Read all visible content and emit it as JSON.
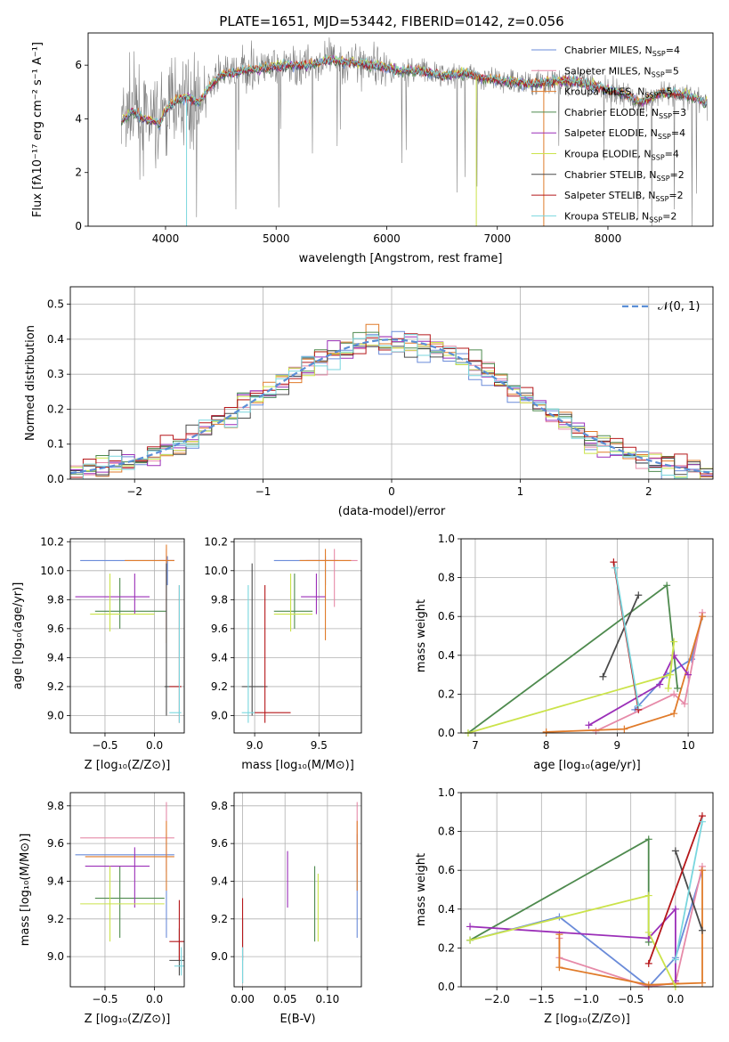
{
  "title": "PLATE=1651, MJD=53442, FIBERID=0142, z=0.056",
  "colors": {
    "chabrier_miles": "#6a8bd9",
    "salpeter_miles": "#e68aa8",
    "kroupa_miles": "#e07b2a",
    "chabrier_elodie": "#4e8a4e",
    "salpeter_elodie": "#9b2fb8",
    "kroupa_elodie": "#cbe34a",
    "chabrier_stelib": "#4a4a4a",
    "salpeter_stelib": "#b5171a",
    "kroupa_stelib": "#79d6de",
    "data": "#808080",
    "normal": "#5b8ed6"
  },
  "chart_data": [
    {
      "id": "spectrum",
      "type": "line",
      "xlabel": "wavelength [Angstrom, rest frame]",
      "ylabel": "Flux [fλ10⁻¹⁷ erg cm⁻² s⁻¹ A⁻¹]",
      "xlim": [
        3300,
        8950
      ],
      "ylim": [
        0,
        7.2
      ],
      "xticks": [
        "4000",
        "5000",
        "6000",
        "7000",
        "8000"
      ],
      "yticks": [
        "0",
        "2",
        "4",
        "6"
      ],
      "legend_position": "right",
      "legend": [
        {
          "label": "Chabrier MILES, N",
          "sub": "SSP",
          "suffix": "=4",
          "color": "chabrier_miles"
        },
        {
          "label": "Salpeter MILES, N",
          "sub": "SSP",
          "suffix": "=5",
          "color": "salpeter_miles"
        },
        {
          "label": "Kroupa MILES, N",
          "sub": "SSP",
          "suffix": "=5",
          "color": "kroupa_miles"
        },
        {
          "label": "Chabrier ELODIE, N",
          "sub": "SSP",
          "suffix": "=3",
          "color": "chabrier_elodie"
        },
        {
          "label": "Salpeter ELODIE, N",
          "sub": "SSP",
          "suffix": "=4",
          "color": "salpeter_elodie"
        },
        {
          "label": "Kroupa ELODIE, N",
          "sub": "SSP",
          "suffix": "=4",
          "color": "kroupa_elodie"
        },
        {
          "label": "Chabrier STELIB, N",
          "sub": "SSP",
          "suffix": "=2",
          "color": "chabrier_stelib"
        },
        {
          "label": "Salpeter STELIB, N",
          "sub": "SSP",
          "suffix": "=2",
          "color": "salpeter_stelib"
        },
        {
          "label": "Kroupa STELIB, N",
          "sub": "SSP",
          "suffix": "=2",
          "color": "kroupa_stelib"
        }
      ],
      "continuum": [
        [
          3600,
          3.9
        ],
        [
          3700,
          4.3
        ],
        [
          3800,
          4.0
        ],
        [
          3900,
          3.9
        ],
        [
          3950,
          3.8
        ],
        [
          4000,
          4.3
        ],
        [
          4100,
          4.7
        ],
        [
          4200,
          4.8
        ],
        [
          4300,
          4.6
        ],
        [
          4400,
          5.2
        ],
        [
          4500,
          5.6
        ],
        [
          4700,
          5.8
        ],
        [
          4900,
          5.9
        ],
        [
          5100,
          6.0
        ],
        [
          5300,
          6.0
        ],
        [
          5500,
          6.2
        ],
        [
          5700,
          6.1
        ],
        [
          5900,
          6.0
        ],
        [
          6100,
          5.8
        ],
        [
          6300,
          5.8
        ],
        [
          6500,
          5.6
        ],
        [
          6700,
          5.7
        ],
        [
          6900,
          5.5
        ],
        [
          7100,
          5.4
        ],
        [
          7300,
          5.3
        ],
        [
          7500,
          5.4
        ],
        [
          7700,
          5.4
        ],
        [
          7900,
          5.2
        ],
        [
          8100,
          5.0
        ],
        [
          8300,
          4.6
        ],
        [
          8500,
          5.0
        ],
        [
          8700,
          4.9
        ],
        [
          8900,
          4.6
        ]
      ]
    },
    {
      "id": "residuals",
      "type": "histogram",
      "xlabel": "(data-model)/error",
      "ylabel": "Normed distribution",
      "xlim": [
        -2.5,
        2.5
      ],
      "ylim": [
        0,
        0.55
      ],
      "xticks": [
        "−2",
        "−1",
        "0",
        "1",
        "2"
      ],
      "yticks": [
        "0.0",
        "0.1",
        "0.2",
        "0.3",
        "0.4",
        "0.5"
      ],
      "grid": true,
      "bin_width": 0.1,
      "legend_position": "top-right",
      "legend_label": "𝒩(0, 1)"
    },
    {
      "id": "age_vs_Z",
      "type": "errorbar",
      "xlabel": "Z [log₁₀(Z/Z⊙)]",
      "ylabel": "age  [log₁₀(age/yr)]",
      "xlim": [
        -0.85,
        0.3
      ],
      "ylim": [
        8.88,
        10.22
      ],
      "xticks": [
        "−0.5",
        "0.0"
      ],
      "yticks": [
        "9.0",
        "9.2",
        "9.4",
        "9.6",
        "9.8",
        "10.0",
        "10.2"
      ],
      "grid": true,
      "points": [
        {
          "c": "chabrier_miles",
          "x": 0.13,
          "y": 10.07,
          "xl": -0.75,
          "xh": 0.2,
          "yl": 9.9,
          "yh": 10.1
        },
        {
          "c": "salpeter_miles",
          "x": 0.12,
          "y": 10.07,
          "xl": 0.05,
          "xh": 0.2,
          "yl": 9.6,
          "yh": 10.15
        },
        {
          "c": "kroupa_miles",
          "x": 0.12,
          "y": 10.07,
          "xl": -0.3,
          "xh": 0.2,
          "yl": 9.5,
          "yh": 10.18
        },
        {
          "c": "chabrier_elodie",
          "x": -0.35,
          "y": 9.72,
          "xl": -0.6,
          "xh": 0.12,
          "yl": 9.6,
          "yh": 9.95
        },
        {
          "c": "salpeter_elodie",
          "x": -0.2,
          "y": 9.82,
          "xl": -0.8,
          "xh": -0.05,
          "yl": 9.7,
          "yh": 9.98
        },
        {
          "c": "kroupa_elodie",
          "x": -0.45,
          "y": 9.7,
          "xl": -0.65,
          "xh": 0.0,
          "yl": 9.58,
          "yh": 9.98
        },
        {
          "c": "chabrier_stelib",
          "x": 0.12,
          "y": 9.2,
          "xl": 0.1,
          "xh": 0.27,
          "yl": 9.0,
          "yh": 10.05
        },
        {
          "c": "salpeter_stelib",
          "x": 0.25,
          "y": 9.2,
          "xl": 0.15,
          "xh": 0.27,
          "yl": 8.95,
          "yh": 9.9
        },
        {
          "c": "kroupa_stelib",
          "x": 0.25,
          "y": 9.02,
          "xl": 0.15,
          "xh": 0.27,
          "yl": 8.95,
          "yh": 9.9
        }
      ]
    },
    {
      "id": "age_vs_mass",
      "type": "errorbar",
      "xlabel": "mass [log₁₀(M/M⊙)]",
      "ylabel": "",
      "xlim": [
        8.84,
        9.83
      ],
      "ylim": [
        8.88,
        10.22
      ],
      "xticks": [
        "9.0",
        "9.5"
      ],
      "yticks": [
        "9.0",
        "9.2",
        "9.4",
        "9.6",
        "9.8",
        "10.0",
        "10.2"
      ],
      "grid": true,
      "points": [
        {
          "c": "chabrier_miles",
          "x": 9.55,
          "y": 10.07,
          "xl": 9.15,
          "xh": 9.65,
          "yl": 9.9,
          "yh": 10.1
        },
        {
          "c": "salpeter_miles",
          "x": 9.62,
          "y": 10.07,
          "xl": 9.4,
          "xh": 9.8,
          "yl": 9.75,
          "yh": 10.15
        },
        {
          "c": "kroupa_miles",
          "x": 9.55,
          "y": 10.07,
          "xl": 9.35,
          "xh": 9.75,
          "yl": 9.52,
          "yh": 10.15
        },
        {
          "c": "chabrier_elodie",
          "x": 9.31,
          "y": 9.72,
          "xl": 9.15,
          "xh": 9.45,
          "yl": 9.6,
          "yh": 9.98
        },
        {
          "c": "salpeter_elodie",
          "x": 9.48,
          "y": 9.82,
          "xl": 9.36,
          "xh": 9.55,
          "yl": 9.7,
          "yh": 9.98
        },
        {
          "c": "kroupa_elodie",
          "x": 9.28,
          "y": 9.7,
          "xl": 9.15,
          "xh": 9.45,
          "yl": 9.58,
          "yh": 9.98
        },
        {
          "c": "chabrier_stelib",
          "x": 8.98,
          "y": 9.2,
          "xl": 8.9,
          "xh": 9.1,
          "yl": 9.0,
          "yh": 10.05
        },
        {
          "c": "salpeter_stelib",
          "x": 9.08,
          "y": 9.02,
          "xl": 9.0,
          "xh": 9.28,
          "yl": 8.95,
          "yh": 9.9
        },
        {
          "c": "kroupa_stelib",
          "x": 8.95,
          "y": 9.02,
          "xl": 8.9,
          "xh": 9.0,
          "yl": 8.95,
          "yh": 9.9
        }
      ]
    },
    {
      "id": "weight_vs_age",
      "type": "line",
      "xlabel": "age  [log₁₀(age/yr)]",
      "ylabel": "mass weight",
      "xlim": [
        6.8,
        10.35
      ],
      "ylim": [
        0,
        1
      ],
      "xticks": [
        "7",
        "8",
        "9",
        "10"
      ],
      "yticks": [
        "0.0",
        "0.2",
        "0.4",
        "0.6",
        "0.8",
        "1.0"
      ],
      "grid": true,
      "series": [
        {
          "c": "chabrier_miles",
          "points": [
            [
              9.25,
              0.12
            ],
            [
              9.7,
              0.3
            ],
            [
              10.05,
              0.38
            ],
            [
              10.2,
              0.6
            ]
          ]
        },
        {
          "c": "salpeter_miles",
          "points": [
            [
              8.7,
              0.01
            ],
            [
              9.8,
              0.2
            ],
            [
              9.95,
              0.15
            ],
            [
              10.2,
              0.62
            ]
          ]
        },
        {
          "c": "kroupa_miles",
          "points": [
            [
              8.0,
              0.005
            ],
            [
              9.1,
              0.02
            ],
            [
              9.8,
              0.1
            ],
            [
              10.2,
              0.6
            ]
          ]
        },
        {
          "c": "chabrier_elodie",
          "points": [
            [
              6.9,
              0.0
            ],
            [
              9.7,
              0.76
            ],
            [
              9.85,
              0.23
            ]
          ]
        },
        {
          "c": "salpeter_elodie",
          "points": [
            [
              8.6,
              0.04
            ],
            [
              9.6,
              0.25
            ],
            [
              9.8,
              0.4
            ],
            [
              10.0,
              0.3
            ]
          ]
        },
        {
          "c": "kroupa_elodie",
          "points": [
            [
              6.9,
              0.0
            ],
            [
              9.75,
              0.3
            ],
            [
              9.8,
              0.47
            ],
            [
              9.72,
              0.23
            ]
          ]
        },
        {
          "c": "chabrier_stelib",
          "points": [
            [
              8.8,
              0.29
            ],
            [
              9.3,
              0.71
            ]
          ]
        },
        {
          "c": "salpeter_stelib",
          "points": [
            [
              8.95,
              0.88
            ],
            [
              9.3,
              0.12
            ]
          ]
        },
        {
          "c": "kroupa_stelib",
          "points": [
            [
              8.97,
              0.85
            ],
            [
              9.3,
              0.14
            ]
          ]
        }
      ]
    },
    {
      "id": "mass_vs_Z",
      "type": "errorbar",
      "xlabel": "Z [log₁₀(Z/Z⊙)]",
      "ylabel": "mass [log₁₀(M/M⊙)]",
      "xlim": [
        -0.85,
        0.3
      ],
      "ylim": [
        8.84,
        9.87
      ],
      "xticks": [
        "−0.5",
        "0.0"
      ],
      "yticks": [
        "9.0",
        "9.2",
        "9.4",
        "9.6",
        "9.8"
      ],
      "grid": true,
      "points": [
        {
          "c": "chabrier_miles",
          "x": 0.12,
          "y": 9.54,
          "xl": -0.8,
          "xh": 0.2,
          "yl": 9.1,
          "yh": 9.65
        },
        {
          "c": "salpeter_miles",
          "x": 0.12,
          "y": 9.63,
          "xl": -0.75,
          "xh": 0.2,
          "yl": 9.45,
          "yh": 9.82
        },
        {
          "c": "kroupa_miles",
          "x": 0.12,
          "y": 9.53,
          "xl": -0.7,
          "xh": 0.2,
          "yl": 9.35,
          "yh": 9.72
        },
        {
          "c": "chabrier_elodie",
          "x": -0.35,
          "y": 9.31,
          "xl": -0.6,
          "xh": 0.1,
          "yl": 9.1,
          "yh": 9.48
        },
        {
          "c": "salpeter_elodie",
          "x": -0.2,
          "y": 9.48,
          "xl": -0.7,
          "xh": -0.05,
          "yl": 9.26,
          "yh": 9.58
        },
        {
          "c": "kroupa_elodie",
          "x": -0.45,
          "y": 9.28,
          "xl": -0.75,
          "xh": 0.1,
          "yl": 9.08,
          "yh": 9.48
        },
        {
          "c": "chabrier_stelib",
          "x": 0.25,
          "y": 8.98,
          "xl": 0.15,
          "xh": 0.3,
          "yl": 8.9,
          "yh": 9.15
        },
        {
          "c": "salpeter_stelib",
          "x": 0.25,
          "y": 9.08,
          "xl": 0.15,
          "xh": 0.3,
          "yl": 8.98,
          "yh": 9.3
        },
        {
          "c": "kroupa_stelib",
          "x": 0.27,
          "y": 8.95,
          "xl": 0.2,
          "xh": 0.3,
          "yl": 8.9,
          "yh": 9.05
        }
      ]
    },
    {
      "id": "mass_vs_ebv",
      "type": "errorbar",
      "xlabel": "E(B-V)",
      "ylabel": "",
      "xlim": [
        -0.01,
        0.14
      ],
      "ylim": [
        8.84,
        9.87
      ],
      "xticks": [
        "0.00",
        "0.05",
        "0.10"
      ],
      "yticks": [
        "9.0",
        "9.2",
        "9.4",
        "9.6",
        "9.8"
      ],
      "grid": true,
      "points": [
        {
          "c": "chabrier_miles",
          "x": 0.135,
          "y": 9.54,
          "yl": 9.1,
          "yh": 9.65
        },
        {
          "c": "salpeter_miles",
          "x": 0.135,
          "y": 9.63,
          "yl": 9.45,
          "yh": 9.82
        },
        {
          "c": "kroupa_miles",
          "x": 0.135,
          "y": 9.53,
          "yl": 9.35,
          "yh": 9.72
        },
        {
          "c": "chabrier_elodie",
          "x": 0.085,
          "y": 9.31,
          "yl": 9.08,
          "yh": 9.48
        },
        {
          "c": "salpeter_elodie",
          "x": 0.053,
          "y": 9.48,
          "yl": 9.26,
          "yh": 9.56
        },
        {
          "c": "kroupa_elodie",
          "x": 0.089,
          "y": 9.28,
          "yl": 9.08,
          "yh": 9.44
        },
        {
          "c": "chabrier_stelib",
          "x": 0.0,
          "y": 8.98,
          "yl": 8.86,
          "yh": 9.2
        },
        {
          "c": "salpeter_stelib",
          "x": 0.0,
          "y": 9.08,
          "yl": 8.98,
          "yh": 9.31
        },
        {
          "c": "kroupa_stelib",
          "x": 0.0,
          "y": 8.95,
          "yl": 8.86,
          "yh": 9.05
        }
      ]
    },
    {
      "id": "weight_vs_Z",
      "type": "line",
      "xlabel": "Z [log₁₀(Z/Z⊙)]",
      "ylabel": "mass weight",
      "xlim": [
        -2.4,
        0.42
      ],
      "ylim": [
        0,
        1
      ],
      "xticks": [
        "−2.0",
        "−1.5",
        "−1.0",
        "−0.5",
        "0.0"
      ],
      "yticks": [
        "0.0",
        "0.2",
        "0.4",
        "0.6",
        "0.8",
        "1.0"
      ],
      "grid": true,
      "series": [
        {
          "c": "chabrier_miles",
          "points": [
            [
              -2.3,
              0.24
            ],
            [
              -1.3,
              0.36
            ],
            [
              -0.3,
              0.0
            ],
            [
              0.0,
              0.15
            ],
            [
              0.3,
              0.6
            ]
          ]
        },
        {
          "c": "salpeter_miles",
          "points": [
            [
              -1.3,
              0.25
            ],
            [
              -1.3,
              0.15
            ],
            [
              -0.3,
              0.0
            ],
            [
              0.0,
              0.02
            ],
            [
              0.3,
              0.62
            ]
          ]
        },
        {
          "c": "kroupa_miles",
          "points": [
            [
              -1.3,
              0.27
            ],
            [
              -1.3,
              0.1
            ],
            [
              -0.3,
              0.01
            ],
            [
              0.3,
              0.02
            ],
            [
              0.3,
              0.6
            ]
          ]
        },
        {
          "c": "chabrier_elodie",
          "points": [
            [
              -2.3,
              0.24
            ],
            [
              -0.3,
              0.76
            ],
            [
              -0.3,
              0.23
            ]
          ]
        },
        {
          "c": "salpeter_elodie",
          "points": [
            [
              -2.3,
              0.31
            ],
            [
              -0.3,
              0.25
            ],
            [
              0.0,
              0.4
            ],
            [
              0.0,
              0.03
            ]
          ]
        },
        {
          "c": "kroupa_elodie",
          "points": [
            [
              -2.3,
              0.24
            ],
            [
              -0.3,
              0.47
            ],
            [
              -0.3,
              0.28
            ],
            [
              0.0,
              0.0
            ]
          ]
        },
        {
          "c": "chabrier_stelib",
          "points": [
            [
              0.0,
              0.7
            ],
            [
              0.3,
              0.29
            ]
          ]
        },
        {
          "c": "salpeter_stelib",
          "points": [
            [
              -0.3,
              0.12
            ],
            [
              0.3,
              0.88
            ]
          ]
        },
        {
          "c": "kroupa_stelib",
          "points": [
            [
              0.0,
              0.14
            ],
            [
              0.3,
              0.85
            ]
          ]
        }
      ]
    }
  ]
}
